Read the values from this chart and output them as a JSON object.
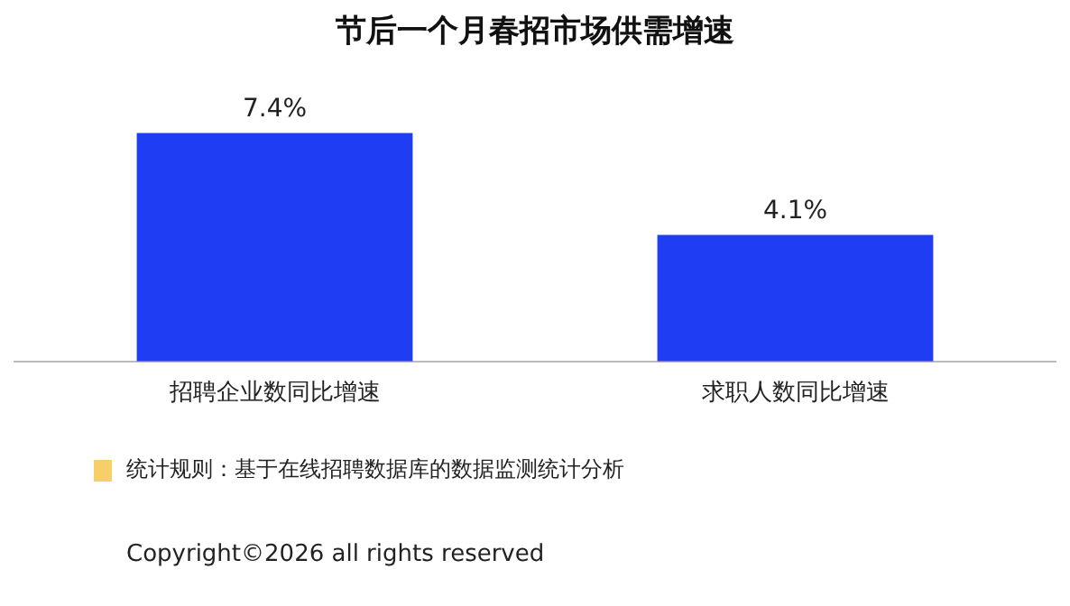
{
  "chart_data": {
    "type": "bar",
    "title": "节后一个月春招市场供需增速",
    "categories": [
      "招聘企业数同比增速",
      "求职人数同比增速"
    ],
    "values": [
      7.4,
      4.1
    ],
    "value_labels": [
      "7.4%",
      "4.1%"
    ],
    "color": "#1f3df2",
    "grid": false,
    "legend": false,
    "annotations": [
      "统计规则：基于在线招聘数据库的数据监测统计分析",
      "Copyright©2026 all rights reserved"
    ]
  }
}
